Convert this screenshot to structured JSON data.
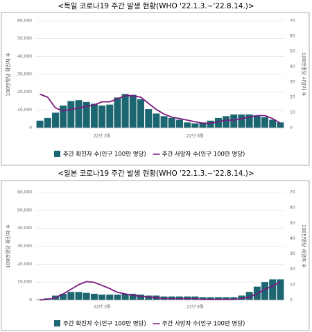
{
  "chart_data": [
    {
      "type": "combo",
      "title": "<독일 코로나19 주간 발생 현황(WHO '22.1.3.~'22.8.14.)>",
      "y_label": "100만명당 확진자 수",
      "y2_label": "100만명당 사망자 수",
      "categories": [
        null,
        null,
        null,
        null,
        null,
        null,
        null,
        null,
        "22년 3월",
        null,
        null,
        null,
        null,
        null,
        null,
        null,
        null,
        null,
        null,
        null,
        "22년 6월",
        null,
        null,
        null,
        null,
        null,
        null,
        null,
        null,
        null,
        null,
        null
      ],
      "series": [
        {
          "name": "주간 확진자 수(인구 100만 명당)",
          "type": "bar",
          "color": "#1b6670",
          "values": [
            4000,
            5500,
            8500,
            12500,
            15000,
            15500,
            14500,
            13500,
            12500,
            13000,
            17000,
            19000,
            18500,
            16000,
            10500,
            8000,
            6500,
            5500,
            4500,
            3000,
            2500,
            3000,
            4000,
            5500,
            6500,
            7500,
            7500,
            7500,
            7000,
            6000,
            4500,
            3000
          ]
        },
        {
          "name": "주간 사망자 수(인구 100만 명당)",
          "type": "line",
          "axis": "y2",
          "color": "#7b1a7e",
          "values": [
            22,
            20,
            13,
            11,
            12,
            13,
            14,
            15,
            17,
            17,
            19,
            21,
            21,
            20,
            16,
            12,
            9,
            7,
            6,
            5,
            4,
            3,
            3,
            4,
            5,
            5,
            6,
            7,
            8,
            8,
            6,
            3
          ]
        }
      ],
      "ylim": [
        0,
        60000
      ],
      "yticks": [
        0,
        {
          "value": 10000,
          "label": "10,000"
        },
        {
          "value": 20000,
          "label": "20,000"
        },
        {
          "value": 30000,
          "label": "30,000"
        },
        {
          "value": 40000,
          "label": "40,000"
        },
        {
          "value": 50000,
          "label": "50,000"
        },
        {
          "value": 60000,
          "label": "60,000"
        }
      ],
      "y2lim": [
        0,
        70
      ],
      "y2ticks": [
        0,
        10,
        20,
        30,
        40,
        50,
        60,
        70
      ],
      "grid": true
    },
    {
      "type": "combo",
      "title": "<일본 코로나19 주간 발생 현황(WHO '22.1.3.~'22.8.14.)>",
      "y_label": "100만명당 확진자 수",
      "y2_label": "100만명당 사망자 수",
      "categories": [
        null,
        null,
        null,
        null,
        null,
        null,
        null,
        null,
        "22년 3월",
        null,
        null,
        null,
        null,
        null,
        null,
        null,
        null,
        null,
        null,
        null,
        "22년 6월",
        null,
        null,
        null,
        null,
        null,
        null,
        null,
        null,
        null,
        null,
        null
      ],
      "series": [
        {
          "name": "주간 확진자 수(인구 100만 명당)",
          "type": "bar",
          "color": "#1b6670",
          "values": [
            300,
            1000,
            2500,
            3500,
            4500,
            4500,
            4000,
            3500,
            3000,
            3000,
            3000,
            3500,
            3500,
            3000,
            2500,
            2500,
            2000,
            2000,
            2000,
            2000,
            2000,
            1500,
            1500,
            1500,
            1500,
            1500,
            2500,
            4500,
            7500,
            10000,
            11500,
            11500
          ]
        },
        {
          "name": "주간 사망자 수(인구 100만 명당)",
          "type": "line",
          "axis": "y2",
          "color": "#7b1a7e",
          "values": [
            0.1,
            0.5,
            1.5,
            4,
            7,
            10,
            12,
            11.5,
            9.5,
            7.5,
            5,
            4,
            3,
            2.5,
            2,
            1.5,
            1,
            1,
            1,
            1,
            1,
            0.5,
            0.5,
            0.5,
            0.5,
            0.5,
            1,
            2,
            4,
            7,
            9,
            12
          ]
        }
      ],
      "ylim": [
        0,
        60000
      ],
      "yticks": [
        0,
        {
          "value": 10000,
          "label": "10,000"
        },
        {
          "value": 20000,
          "label": "20,000"
        },
        {
          "value": 30000,
          "label": "30,000"
        },
        {
          "value": 40000,
          "label": "40,000"
        },
        {
          "value": 50000,
          "label": "50,000"
        },
        {
          "value": 60000,
          "label": "60,000"
        }
      ],
      "y2lim": [
        0,
        70
      ],
      "y2ticks": [
        0,
        10,
        20,
        30,
        40,
        50,
        60,
        70
      ],
      "grid": true
    }
  ]
}
